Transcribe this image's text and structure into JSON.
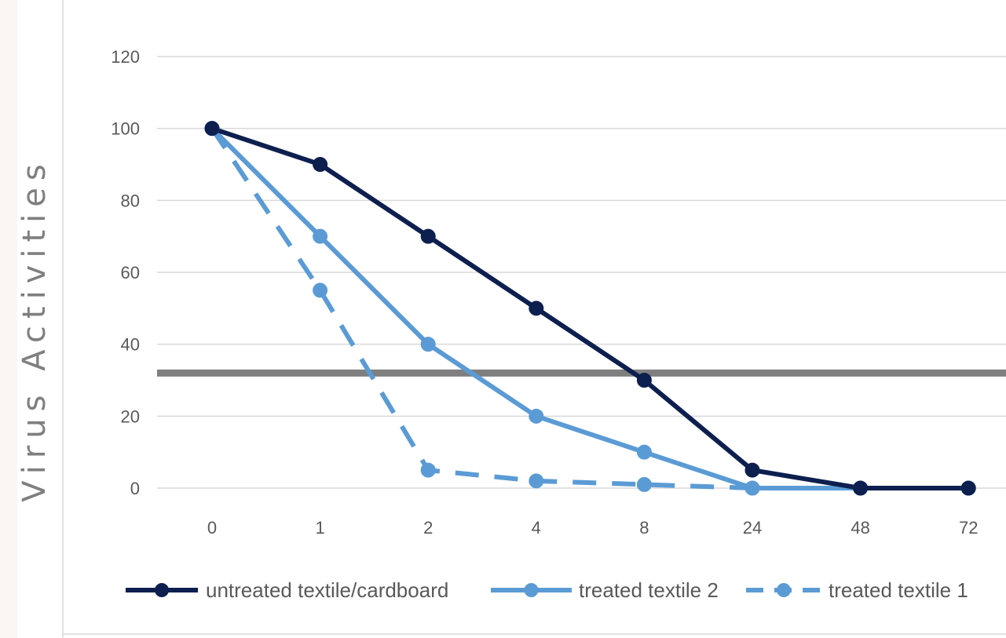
{
  "chart_data": {
    "type": "line",
    "title": "",
    "xlabel": "",
    "ylabel": "Virus Activities",
    "categories": [
      "0",
      "1",
      "2",
      "4",
      "8",
      "24",
      "48",
      "72"
    ],
    "ylim": [
      0,
      120
    ],
    "yticks": [
      "0",
      "20",
      "40",
      "60",
      "80",
      "100",
      "120"
    ],
    "grid": true,
    "legend_position": "bottom",
    "reference_line": {
      "y": 32,
      "color": "#7f7f7f"
    },
    "series": [
      {
        "name": "untreated textile/cardboard",
        "values": [
          100,
          90,
          70,
          50,
          30,
          5,
          0,
          0
        ],
        "color": "#0d1f4f",
        "style": "solid"
      },
      {
        "name": "treated textile 2",
        "values": [
          100,
          70,
          40,
          20,
          10,
          0,
          0,
          0
        ],
        "color": "#5b9bd5",
        "style": "solid"
      },
      {
        "name": "treated textile 1",
        "values": [
          100,
          55,
          5,
          2,
          1,
          0,
          null,
          null
        ],
        "color": "#5b9bd5",
        "style": "dashed"
      }
    ]
  }
}
